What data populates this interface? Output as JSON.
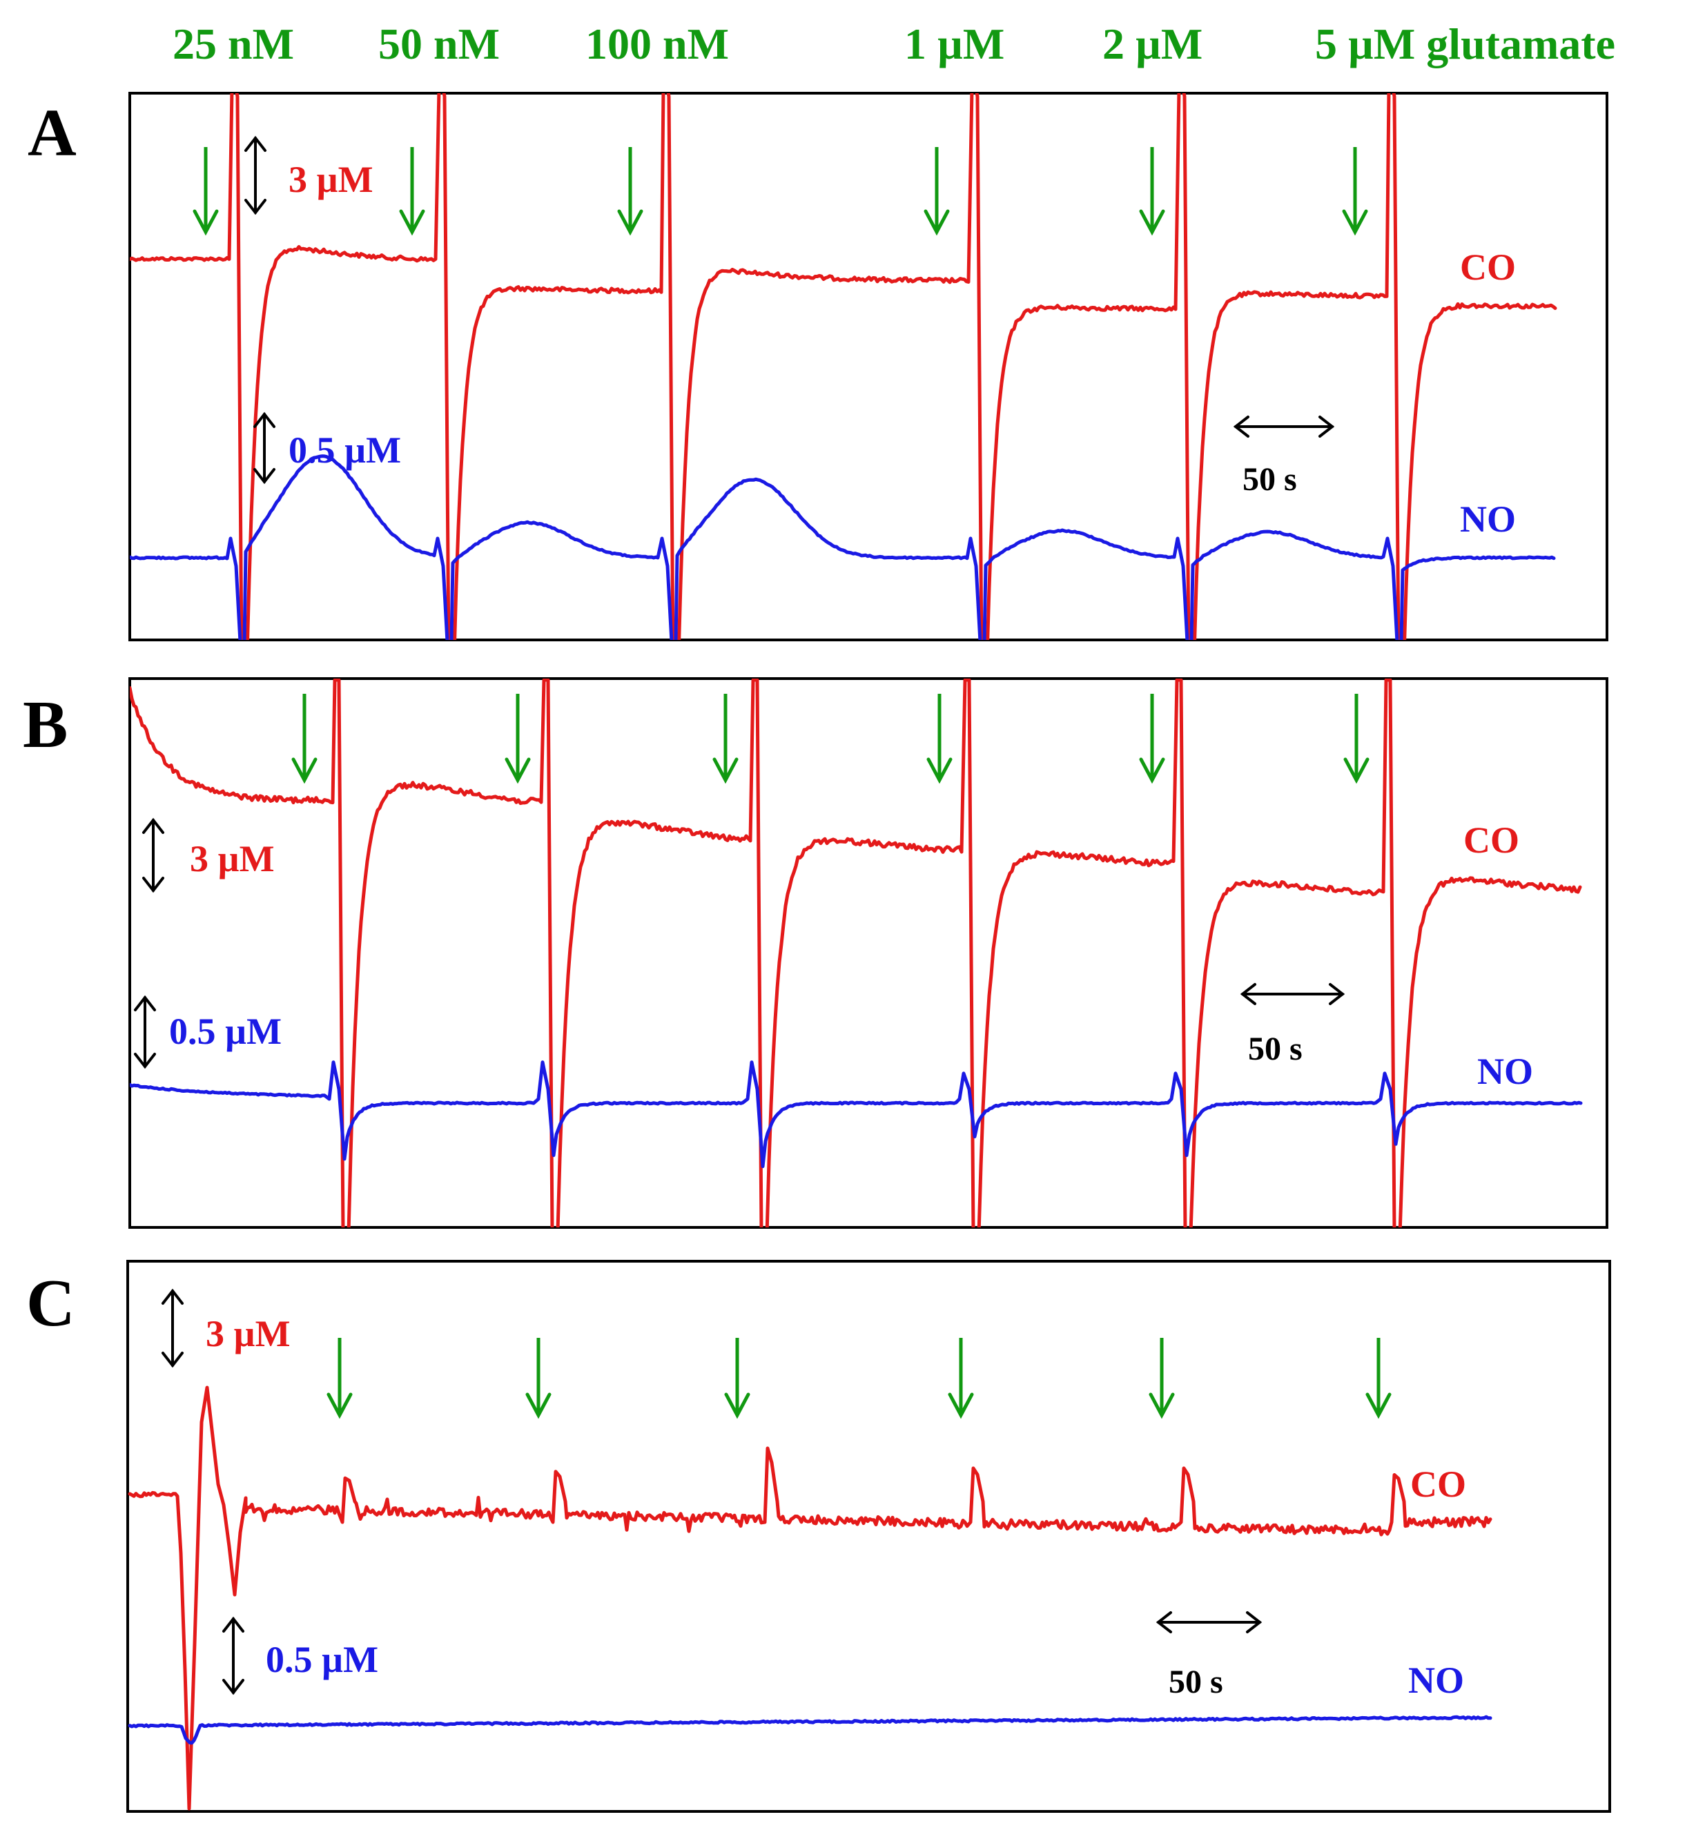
{
  "chart_data": [
    {
      "panel": "A",
      "type": "line",
      "labels": {
        "co": "CO",
        "no": "NO",
        "co_scale": "3 µM",
        "no_scale": "0.5 µM",
        "time_scale": "50 s"
      },
      "glutamate_additions": [
        "25 nM",
        "50 nM",
        "100 nM",
        "1 µM",
        "2 µM",
        "5 µM glutamate"
      ],
      "series": [
        {
          "name": "CO",
          "color": "#e41a1a",
          "baseline_uM": 0.9,
          "step_uM": [
            1.0,
            0.7,
            1.1,
            0.0,
            0.5,
            0.0
          ],
          "recovery_bump_uM": [
            1.2,
            0.3,
            0.9,
            0.2,
            0.3,
            0.2
          ],
          "spike_up_uM": 4.5,
          "spike_down_uM": 14
        },
        {
          "name": "NO",
          "color": "#1a1ae4",
          "baseline_uM": 0.0,
          "response_peak_uM": [
            0.75,
            0.26,
            0.58,
            0.2,
            0.19,
            0.0
          ]
        }
      ]
    },
    {
      "panel": "B",
      "type": "line",
      "labels": {
        "co": "CO",
        "no": "NO",
        "co_scale": "3 µM",
        "no_scale": "0.5 µM",
        "time_scale": "50 s"
      },
      "series": [
        {
          "name": "CO",
          "color": "#e41a1a",
          "plateau_uM": [
            3.9,
            2.2,
            1.6,
            1.2,
            1.0,
            0.5
          ],
          "post_final_uM": 0.3
        },
        {
          "name": "NO",
          "color": "#1a1ae4",
          "baseline_uM": 0.0,
          "spike_up_uM": [
            0.55,
            0.55,
            0.55,
            0.4,
            0.4,
            0.4
          ],
          "undershoot_uM": [
            0.75,
            0.7,
            0.85,
            0.45,
            0.7,
            0.55
          ]
        }
      ]
    },
    {
      "panel": "C",
      "type": "line",
      "labels": {
        "co": "CO",
        "no": "NO",
        "co_scale": "3 µM",
        "no_scale": "0.5 µM",
        "time_scale": "50 s"
      },
      "series": [
        {
          "name": "CO",
          "color": "#e41a1a",
          "transient_peak_uM": [
            0.7,
            0.9,
            1.6,
            1.0,
            1.0,
            0.8
          ]
        },
        {
          "name": "NO",
          "color": "#1a1ae4",
          "baseline_uM": 0.0,
          "drift_uM": 0.05
        }
      ]
    }
  ]
}
